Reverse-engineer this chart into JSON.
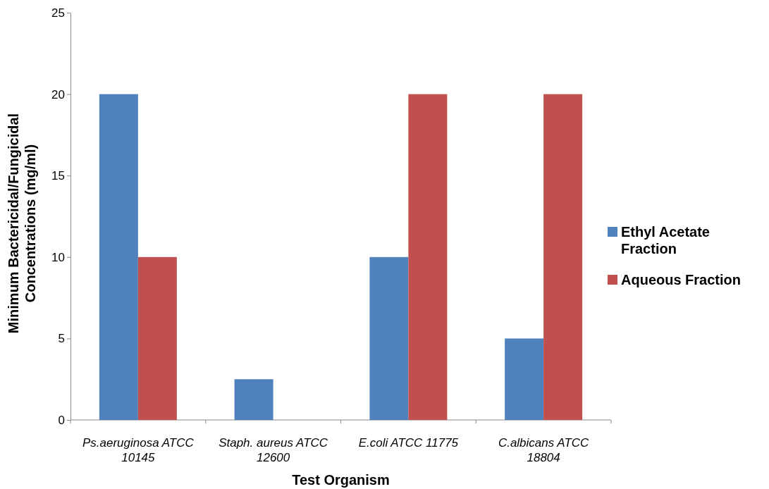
{
  "chart_data": {
    "type": "bar",
    "xlabel": "Test Organism",
    "ylabel": "Minimum Bactericidal/Fungicidal Concentrations (mg/ml)",
    "categories": [
      "Ps.aeruginosa ATCC 10145",
      "Staph. aureus ATCC 12600",
      "E.coli ATCC 11775",
      "C.albicans ATCC 18804"
    ],
    "series": [
      {
        "name": "Ethyl Acetate Fraction",
        "color": "#4f81bd",
        "values": [
          20,
          2.5,
          10,
          5
        ]
      },
      {
        "name": "Aqueous Fraction",
        "color": "#c0504d",
        "values": [
          10,
          null,
          20,
          20
        ]
      }
    ],
    "ylim": [
      0,
      25
    ],
    "yticks": [
      0,
      5,
      10,
      15,
      20,
      25
    ],
    "grid": false,
    "legend": "right"
  }
}
